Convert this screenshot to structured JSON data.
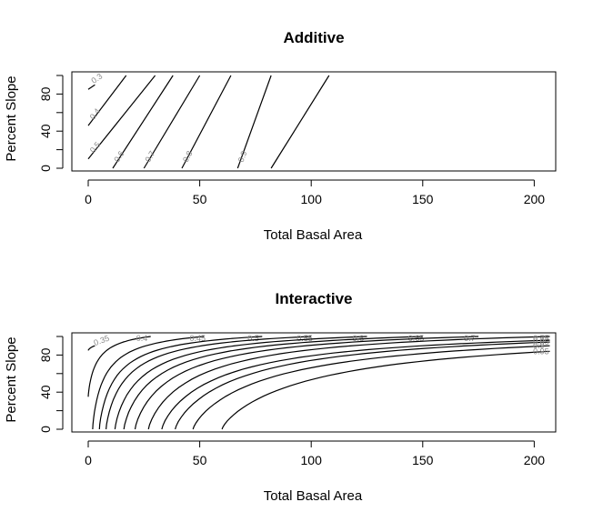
{
  "chart_data": [
    {
      "type": "contour",
      "title": "Additive",
      "xlabel": "Total Basal Area",
      "ylabel": "Percent Slope",
      "xlim": [
        0,
        208
      ],
      "ylim": [
        0,
        100
      ],
      "xticks": [
        0,
        50,
        100,
        150,
        200
      ],
      "yticks": [
        0,
        20,
        40,
        60,
        80,
        100
      ],
      "ytick_labels": [
        "0",
        "",
        "40",
        "",
        "80",
        ""
      ],
      "grid": false,
      "levels": [
        {
          "label": "0.3",
          "points": [
            [
              0,
              85
            ],
            [
              3,
              90
            ]
          ]
        },
        {
          "label": "0.4",
          "points": [
            [
              0,
              46
            ],
            [
              17,
              100
            ]
          ]
        },
        {
          "label": "0.5",
          "points": [
            [
              0,
              10
            ],
            [
              30,
              100
            ]
          ]
        },
        {
          "label": "0.6",
          "points": [
            [
              11,
              0
            ],
            [
              38,
              100
            ]
          ]
        },
        {
          "label": "0.7",
          "points": [
            [
              25,
              0
            ],
            [
              50,
              100
            ]
          ]
        },
        {
          "label": "0.8",
          "points": [
            [
              42,
              0
            ],
            [
              64,
              100
            ]
          ]
        },
        {
          "label": "0.9",
          "points": [
            [
              67,
              0
            ],
            [
              82,
              100
            ]
          ]
        },
        {
          "label": "",
          "points": [
            [
              82,
              0
            ],
            [
              108,
              100
            ]
          ]
        }
      ]
    },
    {
      "type": "contour",
      "title": "Interactive",
      "xlabel": "Total Basal Area",
      "ylabel": "Percent Slope",
      "xlim": [
        0,
        208
      ],
      "ylim": [
        0,
        100
      ],
      "xticks": [
        0,
        50,
        100,
        150,
        200
      ],
      "yticks": [
        0,
        20,
        40,
        60,
        80,
        100
      ],
      "ytick_labels": [
        "0",
        "",
        "40",
        "",
        "80",
        ""
      ],
      "grid": false,
      "levels": [
        {
          "label": "0.35",
          "x0": 0,
          "y0": 85,
          "x1": 3,
          "y1": 90
        },
        {
          "label": "0.4",
          "x0": 0,
          "y0": 35,
          "x1": 28,
          "y1": 100
        },
        {
          "label": "0.45",
          "x0": 2,
          "y0": 0,
          "x1": 52,
          "y1": 100
        },
        {
          "label": "0.5",
          "x0": 5,
          "y0": 0,
          "x1": 78,
          "y1": 100
        },
        {
          "label": "0.55",
          "x0": 8,
          "y0": 0,
          "x1": 100,
          "y1": 100
        },
        {
          "label": "0.6",
          "x0": 12,
          "y0": 0,
          "x1": 125,
          "y1": 100
        },
        {
          "label": "0.65",
          "x0": 16,
          "y0": 0,
          "x1": 150,
          "y1": 100
        },
        {
          "label": "0.7",
          "x0": 21,
          "y0": 0,
          "x1": 175,
          "y1": 100
        },
        {
          "label": "0.75",
          "x0": 27,
          "y0": 0,
          "x1": 207,
          "y1": 100
        },
        {
          "label": "0.8",
          "x0": 33,
          "y0": 0,
          "x1": 207,
          "y1": 96
        },
        {
          "label": "0.85",
          "x0": 39,
          "y0": 0,
          "x1": 207,
          "y1": 94
        },
        {
          "label": "0.9",
          "x0": 47,
          "y0": 0,
          "x1": 207,
          "y1": 90
        },
        {
          "label": "0.95",
          "x0": 60,
          "y0": 0,
          "x1": 207,
          "y1": 84
        }
      ]
    }
  ]
}
